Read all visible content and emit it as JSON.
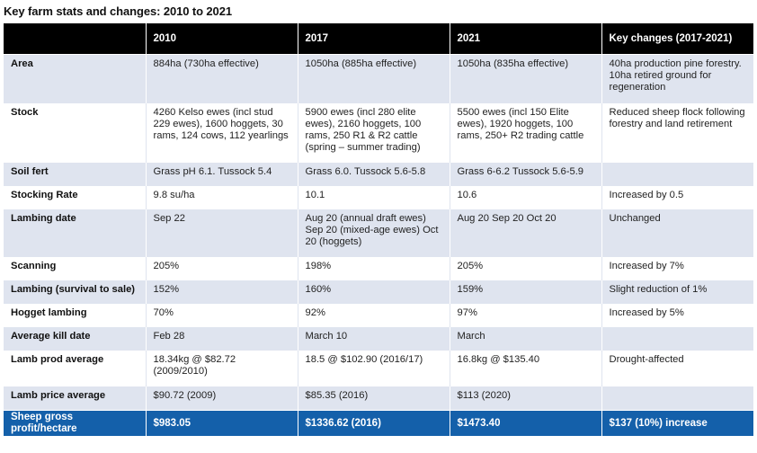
{
  "title": "Key farm stats and changes: 2010 to 2021",
  "headers": [
    "",
    "2010",
    "2017",
    "2021",
    "Key changes (2017-2021)"
  ],
  "rows": [
    {
      "label": "Area",
      "y2010": "884ha (730ha effective)",
      "y2017": "1050ha (885ha effective)",
      "y2021": "1050ha (835ha effective)",
      "changes": "40ha production pine forestry. 10ha retired ground for regeneration"
    },
    {
      "label": "Stock",
      "y2010": "4260 Kelso ewes (incl stud 229 ewes), 1600 hoggets, 30 rams, 124 cows, 112 yearlings",
      "y2017": "5900 ewes (incl 280 elite ewes), 2160 hoggets, 100 rams, 250 R1 & R2 cattle (spring – summer trading)",
      "y2021": "5500 ewes (incl 150 Elite ewes), 1920 hoggets, 100 rams, 250+ R2 trading cattle",
      "changes": "Reduced sheep flock following forestry and land retirement"
    },
    {
      "label": "Soil fert",
      "y2010": "Grass pH 6.1. Tussock 5.4",
      "y2017": "Grass 6.0. Tussock 5.6-5.8",
      "y2021": "Grass 6-6.2 Tussock 5.6-5.9",
      "changes": ""
    },
    {
      "label": "Stocking Rate",
      "y2010": "9.8 su/ha",
      "y2017": "10.1",
      "y2021": "10.6",
      "changes": "Increased by 0.5"
    },
    {
      "label": "Lambing date",
      "y2010": "Sep 22",
      "y2017": "Aug 20 (annual draft ewes) Sep 20 (mixed-age ewes) Oct 20 (hoggets)",
      "y2021": "Aug 20 Sep 20 Oct 20",
      "changes": "Unchanged"
    },
    {
      "label": "Scanning",
      "y2010": "205%",
      "y2017": "198%",
      "y2021": "205%",
      "changes": "Increased by 7%"
    },
    {
      "label": "Lambing (survival to sale)",
      "y2010": "152%",
      "y2017": "160%",
      "y2021": "159%",
      "changes": "Slight reduction of 1%"
    },
    {
      "label": "Hogget lambing",
      "y2010": "70%",
      "y2017": "92%",
      "y2021": "97%",
      "changes": "Increased by 5%"
    },
    {
      "label": "Average kill date",
      "y2010": "Feb 28",
      "y2017": "March 10",
      "y2021": "March",
      "changes": ""
    },
    {
      "label": "Lamb prod average",
      "y2010": "18.34kg @ $82.72 (2009/2010)",
      "y2017": "18.5 @ $102.90 (2016/17)",
      "y2021": "16.8kg @ $135.40",
      "changes": "Drought-affected"
    },
    {
      "label": "Lamb price average",
      "y2010": "$90.72 (2009)",
      "y2017": "$85.35 (2016)",
      "y2021": "$113 (2020)",
      "changes": ""
    }
  ],
  "total": {
    "label": "Sheep gross profit/hectare",
    "y2010": "$983.05",
    "y2017": "$1336.62 (2016)",
    "y2021": "$1473.40",
    "changes": "$137 (10%) increase"
  },
  "colors": {
    "header_bg": "#000000",
    "row_shade": "#dfe4ef",
    "total_bg": "#1460aa"
  }
}
